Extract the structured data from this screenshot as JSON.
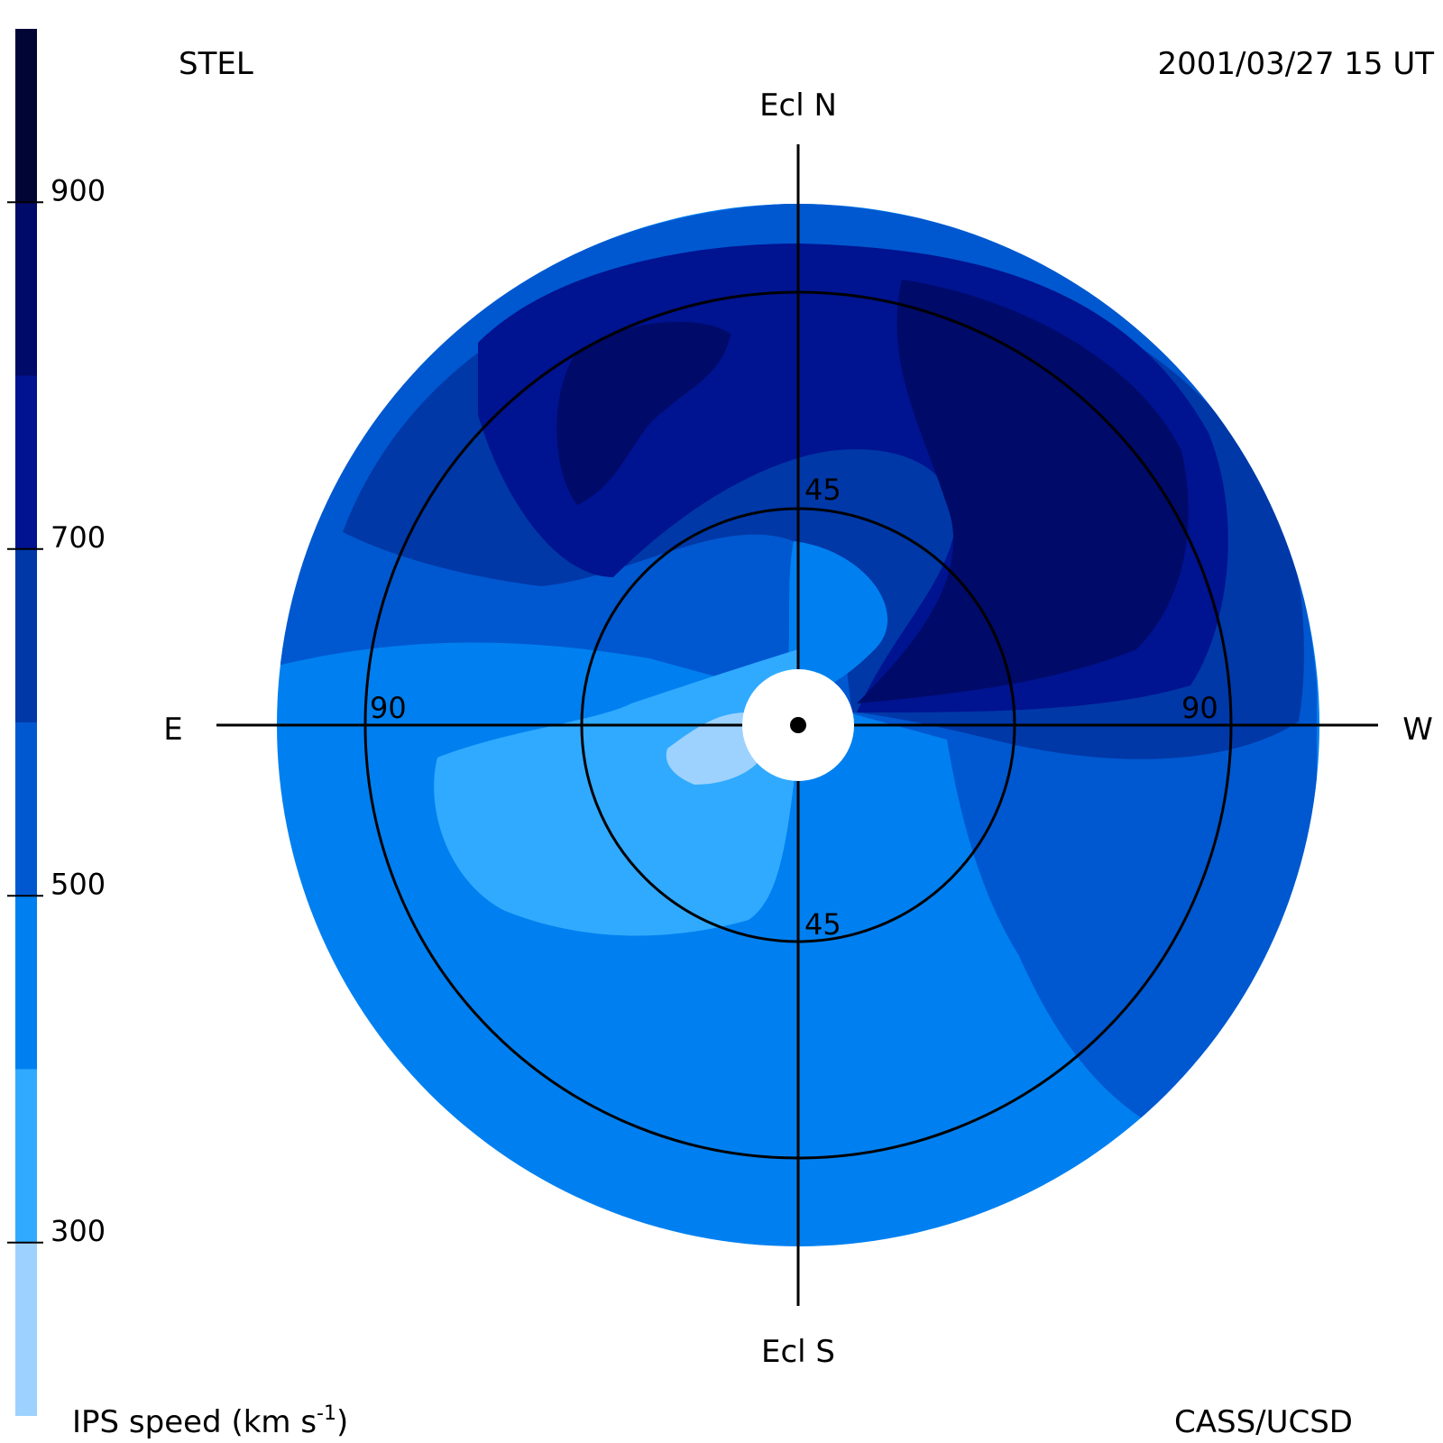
{
  "header": {
    "observatory": "STEL",
    "datetime": "2001/03/27 15 UT"
  },
  "footer": {
    "credit": "CASS/UCSD"
  },
  "compass": {
    "north": "Ecl N",
    "south": "Ecl S",
    "east": "E",
    "west": "W"
  },
  "rings": {
    "inner_label_top": "45",
    "inner_label_bottom": "45",
    "outer_label_east": "90",
    "outer_label_west": "90"
  },
  "colorbar": {
    "title_main": "IPS speed (km s",
    "title_sup": "-1",
    "title_end": ")",
    "ticks": [
      {
        "value": 300,
        "label": "300"
      },
      {
        "value": 500,
        "label": "500"
      },
      {
        "value": 700,
        "label": "700"
      },
      {
        "value": 900,
        "label": "900"
      }
    ],
    "min": 200,
    "max": 1000,
    "bands": [
      {
        "from": 200,
        "to": 300,
        "color": "#9dd2ff"
      },
      {
        "from": 300,
        "to": 400,
        "color": "#30aaff"
      },
      {
        "from": 400,
        "to": 500,
        "color": "#0080f0"
      },
      {
        "from": 500,
        "to": 600,
        "color": "#0058d0"
      },
      {
        "from": 600,
        "to": 700,
        "color": "#0038a8"
      },
      {
        "from": 700,
        "to": 800,
        "color": "#001390"
      },
      {
        "from": 800,
        "to": 900,
        "color": "#000a68"
      },
      {
        "from": 900,
        "to": 1000,
        "color": "#000535"
      }
    ]
  },
  "chart_data": {
    "type": "heatmap",
    "projection": "fisheye sky map centered on Sun",
    "quantity": "IPS speed (km s-1)",
    "elongation_rings_deg": [
      45,
      90
    ],
    "max_elongation_deg": 120,
    "regions": [
      {
        "speed_band": "400-500",
        "location": "background, most of sky"
      },
      {
        "speed_band": "500-600",
        "location": "outer north and south-west"
      },
      {
        "speed_band": "600-700",
        "location": "north, inner west"
      },
      {
        "speed_band": "700-800",
        "location": "north / north-west crescent"
      },
      {
        "speed_band": "800-900",
        "location": "north-west and north-east cores"
      },
      {
        "speed_band": "300-400",
        "location": "south-east"
      },
      {
        "speed_band": "200-300",
        "location": "near Sun, south-east"
      }
    ]
  }
}
